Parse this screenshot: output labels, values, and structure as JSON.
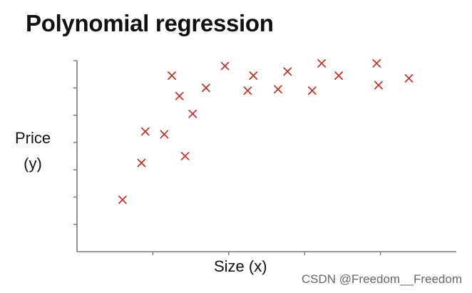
{
  "chart_data": {
    "type": "scatter",
    "title": "Polynomial regression",
    "xlabel": "Size (x)",
    "ylabel_line1": "Price",
    "ylabel_line2": "(y)",
    "marker": "x",
    "marker_color": "#c0392b",
    "axis_color": "#777777",
    "grid": false,
    "xlim": [
      0,
      10
    ],
    "ylim": [
      0,
      7
    ],
    "x_ticks": [
      2,
      4,
      6,
      8
    ],
    "y_ticks": [
      1,
      2,
      3,
      4,
      5,
      6,
      7
    ],
    "points": [
      {
        "x": 1.2,
        "y": 1.9
      },
      {
        "x": 1.7,
        "y": 3.25
      },
      {
        "x": 1.8,
        "y": 4.4
      },
      {
        "x": 2.3,
        "y": 4.3
      },
      {
        "x": 2.5,
        "y": 6.45
      },
      {
        "x": 2.7,
        "y": 5.7
      },
      {
        "x": 2.85,
        "y": 3.5
      },
      {
        "x": 3.05,
        "y": 5.05
      },
      {
        "x": 3.4,
        "y": 6.0
      },
      {
        "x": 3.9,
        "y": 6.8
      },
      {
        "x": 4.5,
        "y": 5.9
      },
      {
        "x": 4.65,
        "y": 6.45
      },
      {
        "x": 5.3,
        "y": 5.95
      },
      {
        "x": 5.55,
        "y": 6.6
      },
      {
        "x": 6.2,
        "y": 5.9
      },
      {
        "x": 6.45,
        "y": 6.9
      },
      {
        "x": 6.9,
        "y": 6.45
      },
      {
        "x": 7.9,
        "y": 6.9
      },
      {
        "x": 7.95,
        "y": 6.1
      },
      {
        "x": 8.75,
        "y": 6.35
      }
    ]
  },
  "watermark": "CSDN @Freedom__Freedom"
}
